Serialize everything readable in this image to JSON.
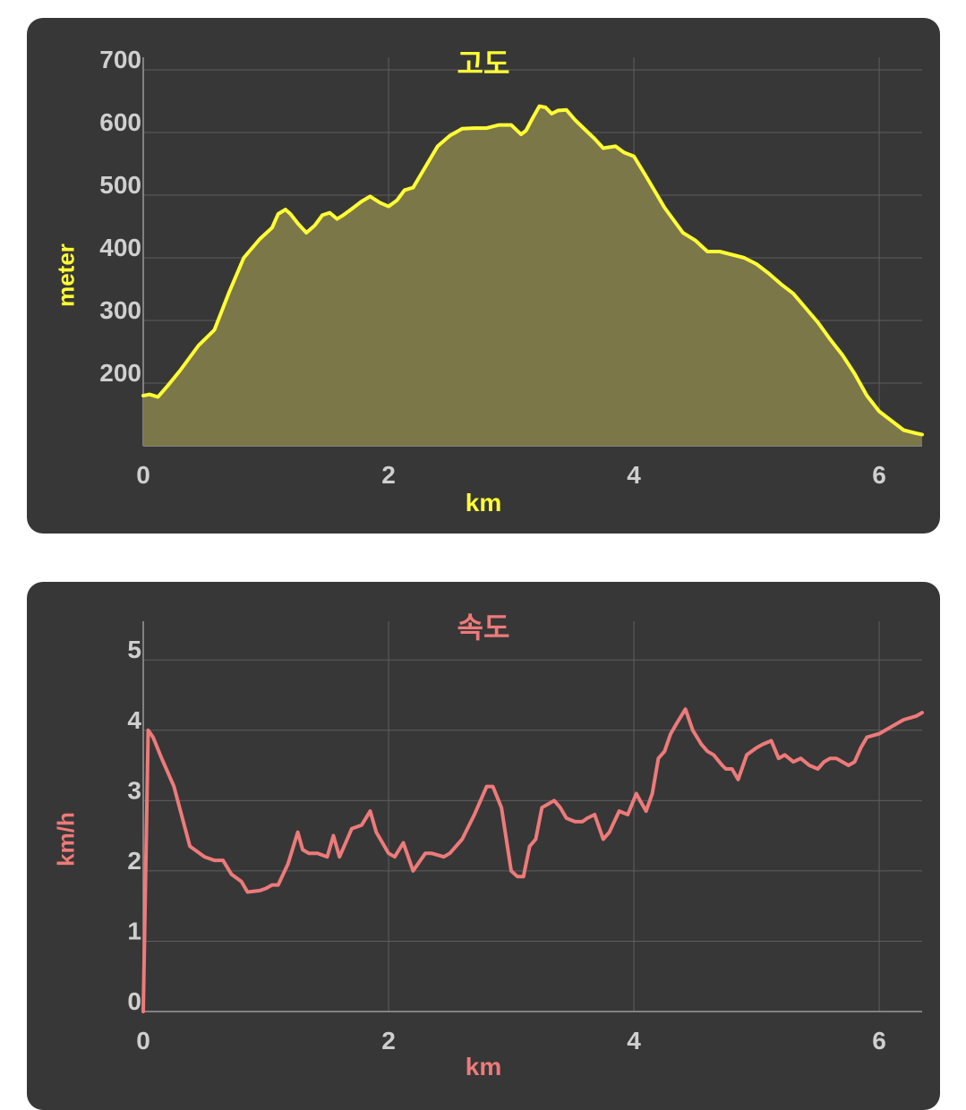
{
  "chart_data": [
    {
      "type": "area",
      "title": "고도",
      "xlabel": "km",
      "ylabel": "meter",
      "xlim": [
        0,
        6.35
      ],
      "ylim": [
        100,
        720
      ],
      "xticks": [
        0,
        2,
        4,
        6
      ],
      "yticks": [
        200,
        300,
        400,
        500,
        600,
        700
      ],
      "grid": true,
      "colors": {
        "line": "#ffff33",
        "fill": "#7c7748",
        "tick": "#cfcfcf"
      },
      "x": [
        0,
        0.05,
        0.12,
        0.2,
        0.3,
        0.45,
        0.58,
        0.7,
        0.82,
        0.95,
        1.05,
        1.1,
        1.16,
        1.2,
        1.26,
        1.33,
        1.4,
        1.46,
        1.52,
        1.58,
        1.63,
        1.7,
        1.78,
        1.85,
        1.93,
        2.0,
        2.07,
        2.13,
        2.2,
        2.3,
        2.4,
        2.5,
        2.6,
        2.7,
        2.8,
        2.9,
        3.0,
        3.08,
        3.12,
        3.18,
        3.23,
        3.28,
        3.33,
        3.38,
        3.45,
        3.52,
        3.6,
        3.68,
        3.75,
        3.85,
        3.92,
        4.0,
        4.1,
        4.25,
        4.4,
        4.5,
        4.6,
        4.7,
        4.8,
        4.9,
        5.0,
        5.1,
        5.2,
        5.3,
        5.4,
        5.5,
        5.6,
        5.7,
        5.8,
        5.9,
        6.0,
        6.1,
        6.2,
        6.3,
        6.35
      ],
      "y": [
        180,
        182,
        178,
        196,
        220,
        260,
        285,
        345,
        400,
        430,
        448,
        470,
        477,
        470,
        455,
        440,
        452,
        468,
        472,
        462,
        468,
        478,
        490,
        498,
        488,
        482,
        492,
        508,
        512,
        545,
        578,
        595,
        606,
        607,
        607,
        612,
        612,
        597,
        603,
        625,
        642,
        640,
        630,
        635,
        636,
        620,
        605,
        590,
        575,
        578,
        568,
        562,
        530,
        480,
        440,
        428,
        410,
        410,
        405,
        400,
        390,
        375,
        358,
        343,
        320,
        297,
        270,
        245,
        215,
        180,
        155,
        140,
        125,
        120,
        118
      ]
    },
    {
      "type": "line",
      "title": "속도",
      "xlabel": "km",
      "ylabel": "km/h",
      "xlim": [
        0,
        6.35
      ],
      "ylim": [
        0,
        5.55
      ],
      "xticks": [
        0,
        2,
        4,
        6
      ],
      "yticks": [
        0,
        1,
        2,
        3,
        4,
        5
      ],
      "grid": true,
      "colors": {
        "line": "#ee7a7a",
        "tick": "#cfcfcf"
      },
      "x": [
        0,
        0.04,
        0.08,
        0.15,
        0.25,
        0.38,
        0.5,
        0.58,
        0.65,
        0.72,
        0.8,
        0.85,
        0.95,
        1.0,
        1.05,
        1.1,
        1.18,
        1.26,
        1.3,
        1.35,
        1.42,
        1.5,
        1.55,
        1.6,
        1.65,
        1.7,
        1.78,
        1.85,
        1.9,
        1.95,
        2.0,
        2.05,
        2.12,
        2.2,
        2.3,
        2.35,
        2.45,
        2.5,
        2.6,
        2.7,
        2.8,
        2.85,
        2.92,
        3.0,
        3.05,
        3.1,
        3.15,
        3.2,
        3.25,
        3.3,
        3.35,
        3.4,
        3.45,
        3.52,
        3.58,
        3.62,
        3.68,
        3.75,
        3.8,
        3.88,
        3.95,
        4.02,
        4.05,
        4.1,
        4.15,
        4.2,
        4.25,
        4.3,
        4.35,
        4.42,
        4.48,
        4.55,
        4.6,
        4.65,
        4.72,
        4.75,
        4.8,
        4.85,
        4.92,
        5.0,
        5.05,
        5.12,
        5.18,
        5.23,
        5.3,
        5.36,
        5.43,
        5.5,
        5.55,
        5.6,
        5.65,
        5.7,
        5.75,
        5.8,
        5.85,
        5.9,
        6.0,
        6.05,
        6.1,
        6.15,
        6.2,
        6.3,
        6.35
      ],
      "y": [
        0,
        4.0,
        3.9,
        3.6,
        3.2,
        2.35,
        2.2,
        2.15,
        2.15,
        1.95,
        1.85,
        1.7,
        1.72,
        1.75,
        1.8,
        1.8,
        2.1,
        2.55,
        2.3,
        2.25,
        2.25,
        2.2,
        2.5,
        2.2,
        2.4,
        2.6,
        2.65,
        2.85,
        2.55,
        2.4,
        2.25,
        2.2,
        2.4,
        2.0,
        2.25,
        2.25,
        2.2,
        2.25,
        2.45,
        2.8,
        3.2,
        3.2,
        2.9,
        2.0,
        1.92,
        1.92,
        2.35,
        2.45,
        2.9,
        2.95,
        3.0,
        2.9,
        2.75,
        2.7,
        2.7,
        2.75,
        2.8,
        2.45,
        2.55,
        2.85,
        2.8,
        3.1,
        3.0,
        2.85,
        3.1,
        3.6,
        3.7,
        3.95,
        4.1,
        4.3,
        4.0,
        3.8,
        3.7,
        3.65,
        3.5,
        3.45,
        3.45,
        3.3,
        3.65,
        3.75,
        3.8,
        3.85,
        3.6,
        3.65,
        3.55,
        3.6,
        3.5,
        3.45,
        3.55,
        3.6,
        3.6,
        3.55,
        3.5,
        3.55,
        3.75,
        3.9,
        3.95,
        4.0,
        4.05,
        4.1,
        4.15,
        4.2,
        4.25
      ]
    }
  ]
}
